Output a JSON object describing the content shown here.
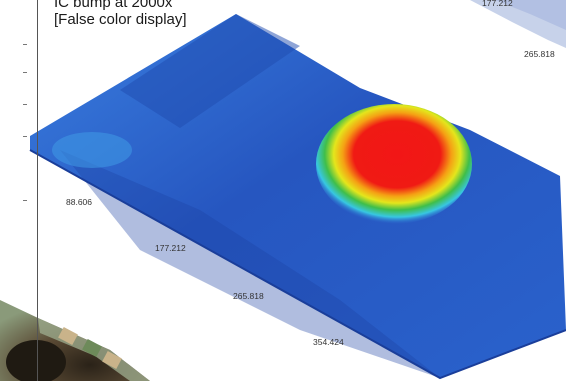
{
  "caption": {
    "line1": "IC bump at 2000x",
    "line2": "[False color display]"
  },
  "axis_ticks": {
    "top_partial": "177.212",
    "top_right": "265.818",
    "bottom": [
      "88.606",
      "177.212",
      "265.818",
      "354.424"
    ]
  },
  "colors": {
    "surface_base": "#2a5fc4",
    "surface_dark": "#1c44a6",
    "surface_light": "#3a86e0",
    "bump_peak": "#f01414",
    "bump_orange": "#f59a12",
    "bump_yellow": "#e6e61a",
    "bump_green": "#3fbe4a",
    "bump_cyan": "#34c6e0"
  }
}
